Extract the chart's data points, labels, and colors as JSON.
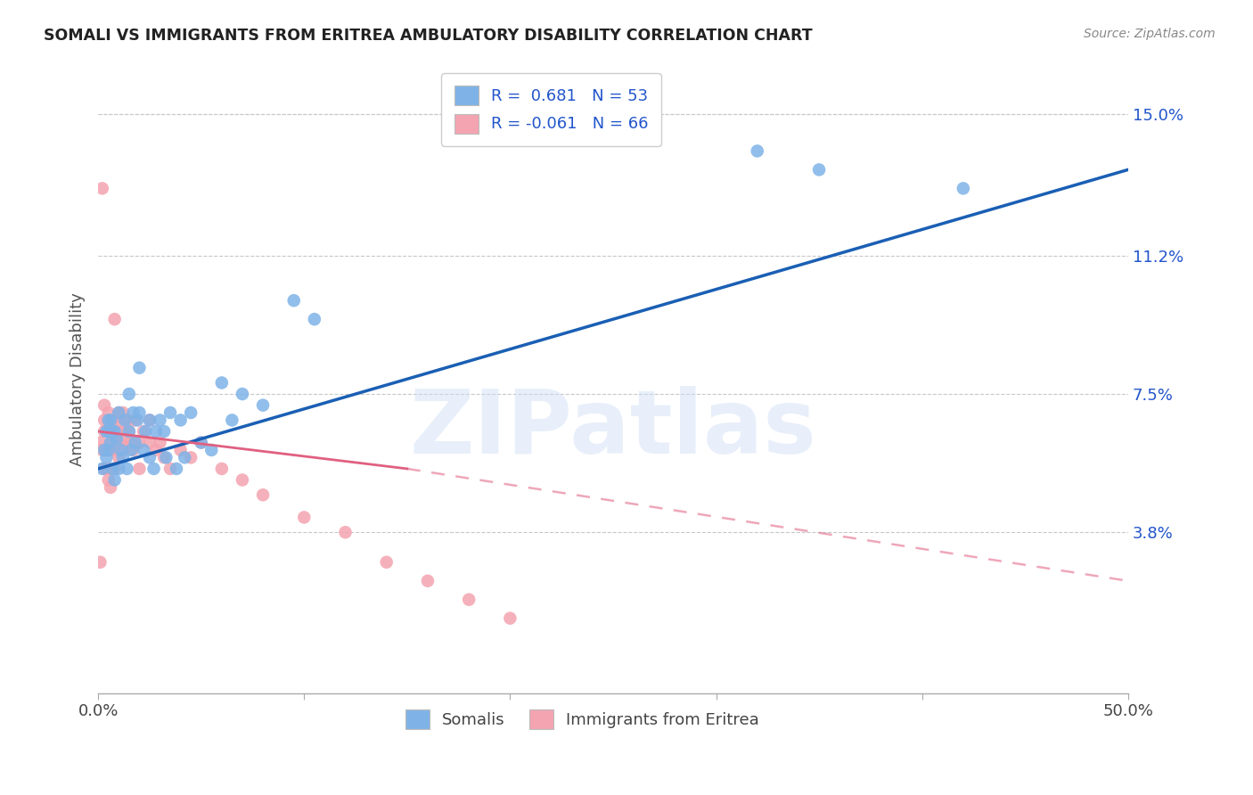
{
  "title": "SOMALI VS IMMIGRANTS FROM ERITREA AMBULATORY DISABILITY CORRELATION CHART",
  "source": "Source: ZipAtlas.com",
  "xlabel_somali": "Somalis",
  "xlabel_eritrea": "Immigrants from Eritrea",
  "ylabel": "Ambulatory Disability",
  "xlim": [
    0.0,
    0.5
  ],
  "ylim": [
    -0.005,
    0.163
  ],
  "ytick_labels_right": [
    "15.0%",
    "11.2%",
    "7.5%",
    "3.8%"
  ],
  "ytick_vals_right": [
    0.15,
    0.112,
    0.075,
    0.038
  ],
  "somali_color": "#7fb3e8",
  "eritrea_color": "#f4a4b0",
  "somali_line_color": "#1a5fb4",
  "eritrea_line_color": "#e06080",
  "somali_R": 0.681,
  "somali_N": 53,
  "eritrea_R": -0.061,
  "eritrea_N": 66,
  "watermark": "ZIPatlas",
  "somali_line": [
    0.0,
    0.055,
    0.5,
    0.135
  ],
  "eritrea_line_solid": [
    0.0,
    0.065,
    0.15,
    0.055
  ],
  "eritrea_line_dash": [
    0.15,
    0.055,
    0.5,
    0.025
  ],
  "somali_x": [
    0.002,
    0.003,
    0.004,
    0.004,
    0.005,
    0.005,
    0.005,
    0.006,
    0.006,
    0.007,
    0.007,
    0.008,
    0.008,
    0.009,
    0.01,
    0.01,
    0.011,
    0.012,
    0.013,
    0.014,
    0.015,
    0.015,
    0.016,
    0.017,
    0.018,
    0.019,
    0.02,
    0.02,
    0.022,
    0.023,
    0.025,
    0.025,
    0.027,
    0.028,
    0.03,
    0.032,
    0.033,
    0.035,
    0.038,
    0.04,
    0.042,
    0.045,
    0.05,
    0.055,
    0.06,
    0.065,
    0.07,
    0.08,
    0.095,
    0.105,
    0.32,
    0.35,
    0.42
  ],
  "somali_y": [
    0.055,
    0.06,
    0.058,
    0.065,
    0.06,
    0.065,
    0.068,
    0.062,
    0.068,
    0.055,
    0.065,
    0.052,
    0.065,
    0.063,
    0.055,
    0.07,
    0.06,
    0.058,
    0.068,
    0.055,
    0.075,
    0.065,
    0.06,
    0.07,
    0.062,
    0.068,
    0.07,
    0.082,
    0.06,
    0.065,
    0.058,
    0.068,
    0.055,
    0.065,
    0.068,
    0.065,
    0.058,
    0.07,
    0.055,
    0.068,
    0.058,
    0.07,
    0.062,
    0.06,
    0.078,
    0.068,
    0.075,
    0.072,
    0.1,
    0.095,
    0.14,
    0.135,
    0.13
  ],
  "eritrea_x": [
    0.001,
    0.001,
    0.002,
    0.002,
    0.003,
    0.003,
    0.003,
    0.003,
    0.004,
    0.004,
    0.004,
    0.005,
    0.005,
    0.005,
    0.005,
    0.005,
    0.006,
    0.006,
    0.006,
    0.006,
    0.007,
    0.007,
    0.007,
    0.008,
    0.008,
    0.008,
    0.009,
    0.009,
    0.009,
    0.01,
    0.01,
    0.01,
    0.011,
    0.011,
    0.012,
    0.012,
    0.012,
    0.013,
    0.013,
    0.014,
    0.015,
    0.015,
    0.016,
    0.017,
    0.018,
    0.02,
    0.02,
    0.022,
    0.025,
    0.025,
    0.028,
    0.03,
    0.032,
    0.035,
    0.04,
    0.045,
    0.05,
    0.06,
    0.07,
    0.08,
    0.1,
    0.12,
    0.14,
    0.16,
    0.18,
    0.2
  ],
  "eritrea_y": [
    0.062,
    0.03,
    0.13,
    0.06,
    0.065,
    0.055,
    0.068,
    0.072,
    0.06,
    0.065,
    0.055,
    0.052,
    0.06,
    0.065,
    0.068,
    0.07,
    0.05,
    0.055,
    0.062,
    0.065,
    0.06,
    0.065,
    0.068,
    0.055,
    0.065,
    0.095,
    0.06,
    0.062,
    0.065,
    0.058,
    0.065,
    0.07,
    0.062,
    0.068,
    0.06,
    0.065,
    0.07,
    0.065,
    0.068,
    0.068,
    0.062,
    0.065,
    0.062,
    0.06,
    0.068,
    0.062,
    0.055,
    0.065,
    0.068,
    0.062,
    0.06,
    0.062,
    0.058,
    0.055,
    0.06,
    0.058,
    0.062,
    0.055,
    0.052,
    0.048,
    0.042,
    0.038,
    0.03,
    0.025,
    0.02,
    0.015
  ],
  "background_color": "#ffffff",
  "grid_color": "#c8c8c8"
}
